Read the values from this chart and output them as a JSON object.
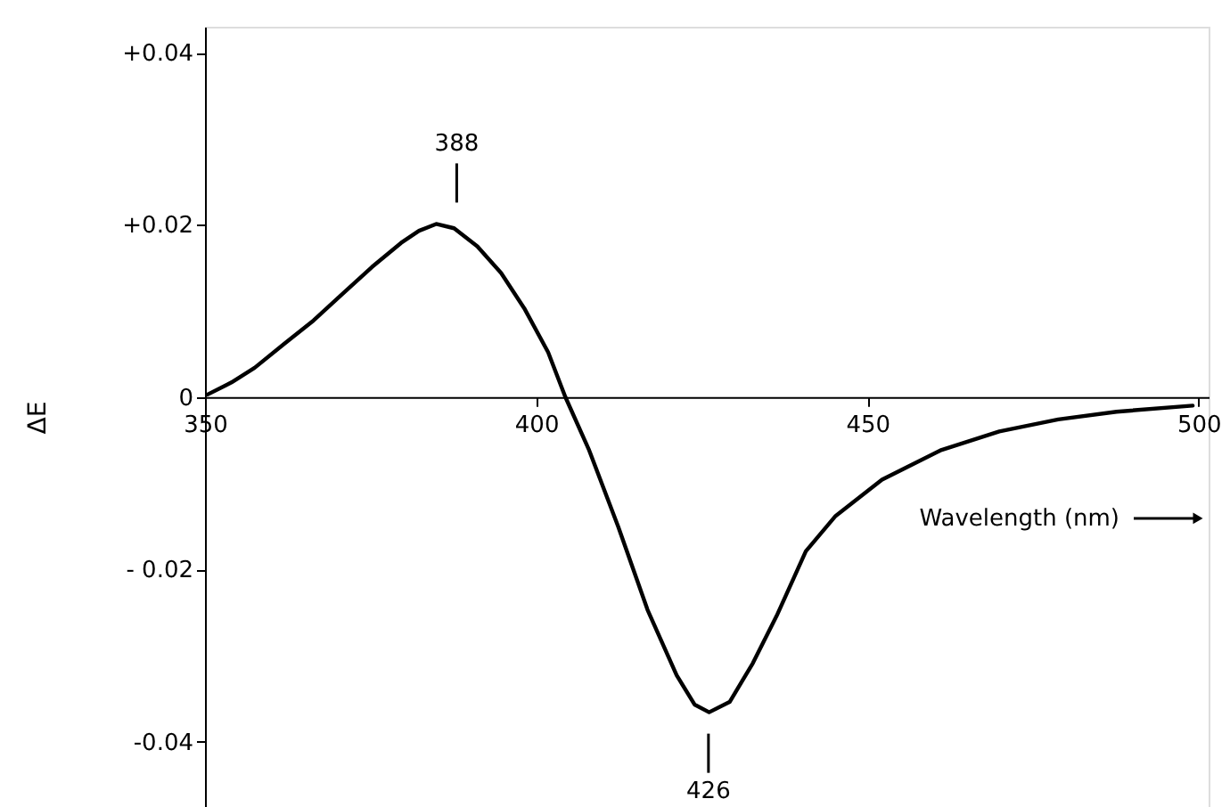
{
  "chart_data": {
    "type": "line",
    "xlabel": "Wavelength (nm)",
    "ylabel": "ΔE",
    "x": [
      350.4,
      354,
      357.5,
      362,
      366.4,
      370.8,
      375.2,
      379.6,
      382.3,
      384.9,
      387.6,
      391.1,
      394.7,
      398.2,
      401.8,
      404.4,
      408,
      412.4,
      416.8,
      421.2,
      423.9,
      426.1,
      429.2,
      432.7,
      436.3,
      440.7,
      445.2,
      452.2,
      461,
      469.9,
      478.8,
      487.6,
      499.1
    ],
    "series": [
      {
        "color": "#000000",
        "values": [
          0.0003,
          0.0017,
          0.0034,
          0.0062,
          0.0089,
          0.012,
          0.0151,
          0.0179,
          0.0193,
          0.0201,
          0.0196,
          0.0175,
          0.0144,
          0.0103,
          0.0052,
          0,
          -0.0062,
          -0.0151,
          -0.0247,
          -0.0323,
          -0.0357,
          -0.0366,
          -0.0354,
          -0.0309,
          -0.0254,
          -0.0179,
          -0.0138,
          -0.0096,
          -0.0062,
          -0.004,
          -0.0026,
          -0.0017,
          -0.001
        ]
      }
    ],
    "annotations": [
      {
        "text": "388",
        "x": 388,
        "y": 0.0201
      },
      {
        "text": "426",
        "x": 426,
        "y": -0.0366
      }
    ],
    "xlim": [
      350,
      501.5
    ],
    "xticks": [
      350,
      400,
      450,
      500
    ],
    "ylim": [
      -0.0476,
      0.043
    ],
    "yticks": [
      {
        "value": 0.04,
        "label": "+0.04"
      },
      {
        "value": 0.02,
        "label": "+0.02"
      },
      0,
      {
        "value": -0.02,
        "label": "- 0.02"
      },
      {
        "value": -0.04,
        "label": "-0.04"
      }
    ],
    "grid": false,
    "marker": "none",
    "line_style": "solid"
  }
}
